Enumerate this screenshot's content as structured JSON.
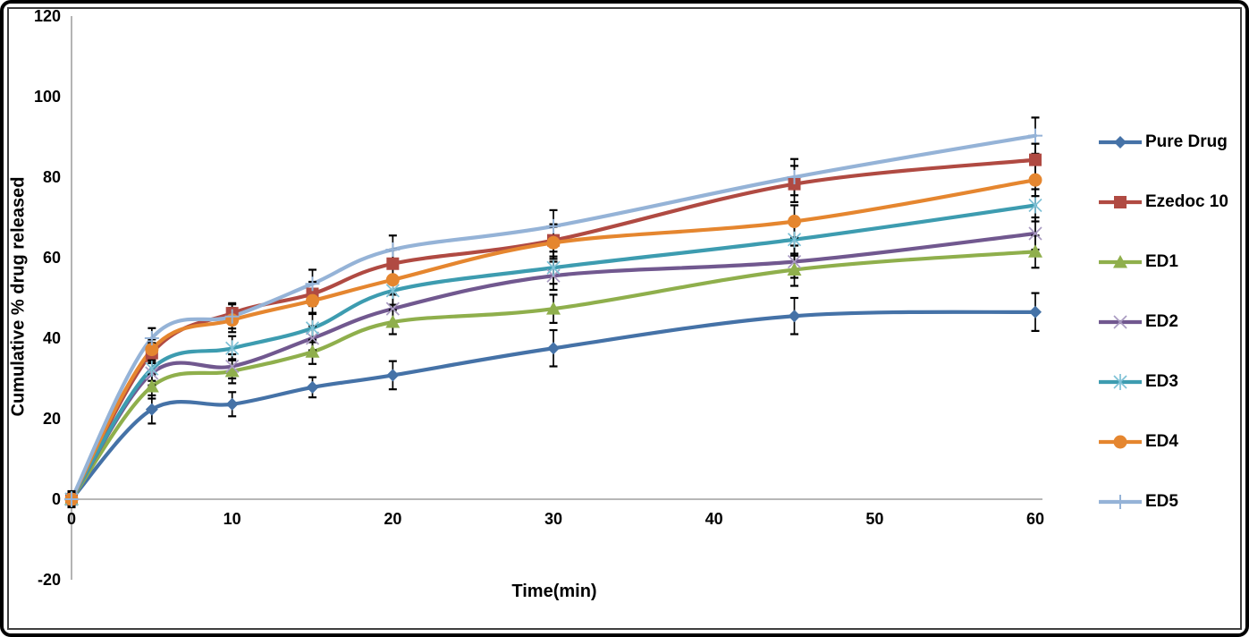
{
  "chart_data": {
    "type": "line",
    "title": "",
    "xlabel": "Time(min)",
    "ylabel": "Cumulative % drug released",
    "x": [
      0,
      5,
      10,
      15,
      20,
      30,
      45,
      60
    ],
    "x_ticks": [
      0,
      10,
      20,
      30,
      40,
      50,
      60
    ],
    "y_ticks": [
      -20,
      0,
      20,
      40,
      60,
      80,
      100,
      120
    ],
    "xlim": [
      0,
      60
    ],
    "ylim": [
      -20,
      120
    ],
    "grid": false,
    "legend_position": "right",
    "smooth_lines": true,
    "error_bars": true,
    "axis_color": "#8c8c8c",
    "error_bar_color": "#000000",
    "text_color": "#000000",
    "series": [
      {
        "name": "Pure Drug",
        "color": "#4572A7",
        "marker": "diamond",
        "marker_color": "#4572A7",
        "values": [
          0,
          22.3,
          23.6,
          27.8,
          30.8,
          37.5,
          45.5,
          46.5
        ],
        "err": [
          2,
          3.5,
          3,
          2.5,
          3.5,
          4.5,
          4.5,
          4.7
        ]
      },
      {
        "name": "Ezedoc 10",
        "color": "#B04A42",
        "marker": "square",
        "marker_color": "#B04A42",
        "values": [
          0,
          36.3,
          46.2,
          51.0,
          58.5,
          64.3,
          78.3,
          84.3
        ],
        "err": [
          1.5,
          2.5,
          2.5,
          3,
          3.5,
          4,
          4.5,
          4
        ]
      },
      {
        "name": "ED1",
        "color": "#8FAF4C",
        "marker": "triangle",
        "marker_color": "#8FAF4C",
        "values": [
          0,
          28.0,
          31.8,
          36.6,
          44.0,
          47.3,
          57.0,
          61.5
        ],
        "err": [
          1.5,
          3,
          3,
          3,
          3,
          3.5,
          4,
          4
        ]
      },
      {
        "name": "ED2",
        "color": "#71588F",
        "marker": "x",
        "marker_color": "#A99BC1",
        "values": [
          0,
          31.3,
          33.0,
          40.0,
          47.3,
          55.5,
          59.0,
          66.0
        ],
        "err": [
          1.5,
          3,
          3,
          3,
          3.5,
          3.5,
          4,
          4
        ]
      },
      {
        "name": "ED3",
        "color": "#3D9CB0",
        "marker": "asterisk",
        "marker_color": "#7EC1D6",
        "values": [
          0,
          32.4,
          37.5,
          42.5,
          51.8,
          57.5,
          64.5,
          73.0
        ],
        "err": [
          1.5,
          3,
          3,
          3.5,
          3.5,
          4,
          4,
          4
        ]
      },
      {
        "name": "ED4",
        "color": "#E5862F",
        "marker": "circle",
        "marker_color": "#E5862F",
        "values": [
          0,
          37.2,
          44.5,
          49.3,
          54.5,
          63.7,
          69.0,
          79.3
        ],
        "err": [
          1.5,
          2.5,
          3,
          3,
          3.5,
          4,
          4,
          4
        ]
      },
      {
        "name": "ED5",
        "color": "#95B3D7",
        "marker": "plus",
        "marker_color": "#95B3D7",
        "values": [
          0,
          40.0,
          45.4,
          53.5,
          62.0,
          67.8,
          80.0,
          90.3
        ],
        "err": [
          1.5,
          2.5,
          3,
          3.5,
          3.5,
          4,
          4.5,
          4.5
        ]
      }
    ]
  },
  "layout_labels": {
    "x_axis_title": "Time(min)",
    "y_axis_title": "Cumulative % drug released"
  }
}
